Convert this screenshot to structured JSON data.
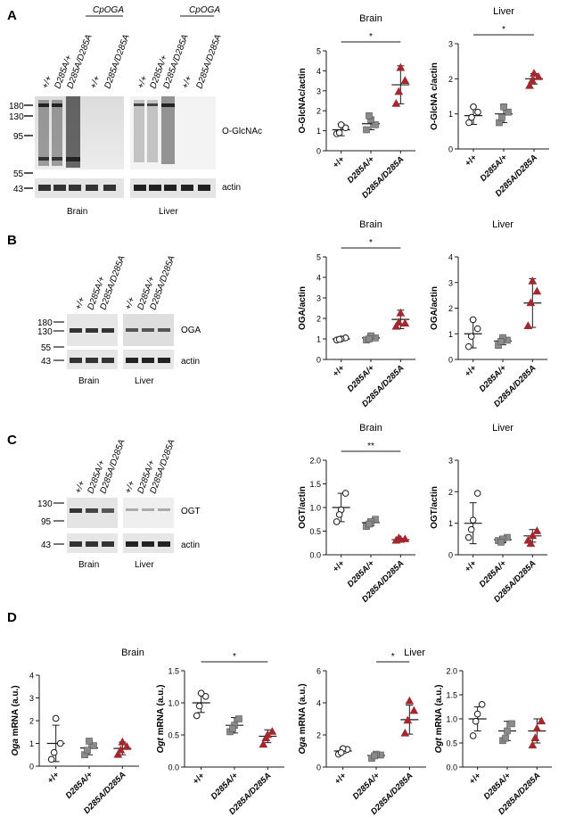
{
  "colors": {
    "wt": "#ffffff",
    "het": "#8a8a8a",
    "hom": "#a3282e",
    "line": "#1a1a1a",
    "blot_bg": "#e6e6e6"
  },
  "genotype_labels": [
    "+/+",
    "D285A/+",
    "D285A/D285A"
  ],
  "blots": {
    "A": {
      "letter": "A",
      "header_brain": [
        "+/+",
        "D285A/+",
        "D285A/D285A",
        "+/+",
        "D285A/D285A"
      ],
      "header_liver": [
        "+/+",
        "D285A/+",
        "D285A/D285A",
        "+/+",
        "D285A/D285A"
      ],
      "cpoga_label": "CpOGA",
      "markers": [
        "180",
        "130",
        "95",
        "55",
        "43"
      ],
      "band_labels": [
        "O-GlcNAc",
        "actin"
      ],
      "tissues": [
        "Brain",
        "Liver"
      ]
    },
    "B": {
      "letter": "B",
      "header": [
        "+/+",
        "D285A/+",
        "D285A/D285A"
      ],
      "markers": [
        "180",
        "130",
        "55",
        "43"
      ],
      "band_labels": [
        "OGA",
        "actin"
      ],
      "tissues": [
        "Brain",
        "Liver"
      ]
    },
    "C": {
      "letter": "C",
      "header": [
        "+/+",
        "D285A/+",
        "D285A/D285A"
      ],
      "markers": [
        "130",
        "95",
        "43"
      ],
      "band_labels": [
        "OGT",
        "actin"
      ],
      "tissues": [
        "Brain",
        "Liver"
      ]
    },
    "D": {
      "letter": "D",
      "group_titles": [
        "Brain",
        "Liver"
      ]
    }
  },
  "chart_data": [
    {
      "id": "A-brain",
      "type": "scatter",
      "title": "Brain",
      "ylabel": "O-GlcNAc/actin",
      "ylim": [
        0,
        5
      ],
      "yticks": [
        0,
        1,
        2,
        3,
        4,
        5
      ],
      "categories": [
        "+/+",
        "D285A/+",
        "D285A/D285A"
      ],
      "points": [
        [
          0.85,
          1.15,
          1.3,
          0.9
        ],
        [
          1.05,
          1.3,
          1.55,
          1.75
        ],
        [
          2.35,
          3.5,
          4.15,
          2.95
        ]
      ],
      "mean": [
        1.05,
        1.35,
        3.3
      ],
      "sd": [
        0.3,
        0.3,
        0.95
      ],
      "significance": [
        {
          "from": 0,
          "to": 2,
          "label": "*"
        }
      ]
    },
    {
      "id": "A-liver",
      "type": "scatter",
      "title": "Liver",
      "ylabel": "O-GlcNA c/actin",
      "ylim": [
        0,
        3
      ],
      "yticks": [
        0,
        1,
        2,
        3
      ],
      "categories": [
        "+/+",
        "D285A/+",
        "D285A/D285A"
      ],
      "points": [
        [
          0.75,
          1.05,
          1.2,
          0.9
        ],
        [
          0.75,
          1.05,
          1.2,
          0.9
        ],
        [
          1.8,
          2.05,
          2.15,
          1.95
        ]
      ],
      "mean": [
        0.95,
        1.0,
        2.0
      ],
      "sd": [
        0.25,
        0.25,
        0.15
      ],
      "significance": [
        {
          "from": 0,
          "to": 2,
          "label": "*"
        }
      ]
    },
    {
      "id": "B-brain",
      "type": "scatter",
      "title": "Brain",
      "ylabel": "OGA/actin",
      "ylim": [
        0,
        5
      ],
      "yticks": [
        0,
        1,
        2,
        3,
        4,
        5
      ],
      "categories": [
        "+/+",
        "D285A/+",
        "D285A/D285A"
      ],
      "points": [
        [
          0.95,
          1.05,
          1.0,
          0.98
        ],
        [
          0.95,
          1.05,
          1.15,
          1.0
        ],
        [
          1.6,
          1.75,
          2.25,
          1.8
        ]
      ],
      "mean": [
        1.0,
        1.05,
        1.95
      ],
      "sd": [
        0.08,
        0.12,
        0.45
      ],
      "significance": [
        {
          "from": 0,
          "to": 2,
          "label": "*"
        }
      ]
    },
    {
      "id": "B-liver",
      "type": "scatter",
      "title": "Liver",
      "ylabel": "OGA/actin",
      "ylim": [
        0,
        4
      ],
      "yticks": [
        0,
        1,
        2,
        3,
        4
      ],
      "categories": [
        "+/+",
        "D285A/+",
        "D285A/D285A"
      ],
      "points": [
        [
          0.5,
          1.2,
          1.55,
          0.9
        ],
        [
          0.55,
          0.75,
          0.85,
          0.7
        ],
        [
          1.3,
          2.65,
          3.05,
          2.2
        ]
      ],
      "mean": [
        1.0,
        0.72,
        2.2
      ],
      "sd": [
        0.55,
        0.15,
        0.95
      ],
      "significance": []
    },
    {
      "id": "C-brain",
      "type": "scatter",
      "title": "Brain",
      "ylabel": "OGT/actin",
      "ylim": [
        0,
        2.0
      ],
      "yticks": [
        0.0,
        0.5,
        1.0,
        1.5,
        2.0
      ],
      "categories": [
        "+/+",
        "D285A/+",
        "D285A/D285A"
      ],
      "points": [
        [
          0.7,
          1.3,
          0.95,
          0.85
        ],
        [
          0.6,
          0.75,
          0.7,
          0.65
        ],
        [
          0.3,
          0.33,
          0.32,
          0.35
        ]
      ],
      "mean": [
        1.0,
        0.68,
        0.32
      ],
      "sd": [
        0.3,
        0.07,
        0.03
      ],
      "significance": [
        {
          "from": 0,
          "to": 2,
          "label": "**"
        }
      ]
    },
    {
      "id": "C-liver",
      "type": "scatter",
      "title": "Liver",
      "ylabel": "OGT/actin",
      "ylim": [
        0,
        3
      ],
      "yticks": [
        0,
        1,
        2,
        3
      ],
      "categories": [
        "+/+",
        "D285A/+",
        "D285A/D285A"
      ],
      "points": [
        [
          0.55,
          1.95,
          1.1,
          0.8
        ],
        [
          0.45,
          0.55,
          0.5,
          0.4
        ],
        [
          0.45,
          0.75,
          0.6,
          0.35
        ]
      ],
      "mean": [
        1.0,
        0.48,
        0.6
      ],
      "sd": [
        0.65,
        0.1,
        0.2
      ],
      "significance": []
    },
    {
      "id": "D-brain-oga",
      "type": "scatter",
      "ylabel": "Oga mRNA (a.u.)",
      "ylabel_italic": "Oga",
      "ylabel_rest": " mRNA (a.u.)",
      "ylim": [
        0,
        4
      ],
      "yticks": [
        0,
        1,
        2,
        3,
        4
      ],
      "categories": [
        "+/+",
        "D285A/+",
        "D285A/D285A"
      ],
      "points": [
        [
          0.3,
          1.0,
          2.1,
          0.6
        ],
        [
          0.5,
          0.9,
          1.1,
          0.7
        ],
        [
          0.5,
          0.85,
          1.05,
          0.7
        ]
      ],
      "mean": [
        1.0,
        0.8,
        0.78
      ],
      "sd": [
        0.8,
        0.3,
        0.28
      ],
      "significance": []
    },
    {
      "id": "D-brain-ogt",
      "type": "scatter",
      "ylabel": "Ogt mRNA (a.u.)",
      "ylabel_italic": "Ogt",
      "ylabel_rest": " mRNA (a.u.)",
      "ylim": [
        0,
        1.5
      ],
      "yticks": [
        0.0,
        0.5,
        1.0,
        1.5
      ],
      "categories": [
        "+/+",
        "D285A/+",
        "D285A/D285A"
      ],
      "points": [
        [
          0.8,
          1.1,
          1.15,
          0.95
        ],
        [
          0.55,
          0.75,
          0.65,
          0.6
        ],
        [
          0.35,
          0.55,
          0.5,
          0.45
        ]
      ],
      "mean": [
        1.0,
        0.65,
        0.48
      ],
      "sd": [
        0.15,
        0.12,
        0.1
      ],
      "significance": [
        {
          "from": 0,
          "to": 2,
          "label": "*"
        }
      ]
    },
    {
      "id": "D-liver-oga",
      "type": "scatter",
      "ylabel": "Oga mRNA (a.u.)",
      "ylabel_italic": "Oga",
      "ylabel_rest": " mRNA (a.u.)",
      "ylim": [
        0,
        6
      ],
      "yticks": [
        0,
        2,
        4,
        6
      ],
      "categories": [
        "+/+",
        "D285A/+",
        "D285A/D285A"
      ],
      "points": [
        [
          0.8,
          1.1,
          1.15,
          0.9
        ],
        [
          0.55,
          0.75,
          0.8,
          0.7
        ],
        [
          2.1,
          3.5,
          4.1,
          2.9
        ]
      ],
      "mean": [
        1.0,
        0.72,
        2.95
      ],
      "sd": [
        0.15,
        0.12,
        0.9
      ],
      "significance": [
        {
          "from": 1,
          "to": 2,
          "label": "*"
        }
      ]
    },
    {
      "id": "D-liver-ogt",
      "type": "scatter",
      "ylabel": "Ogt mRNA (a.u.)",
      "ylabel_italic": "Ogt",
      "ylabel_rest": " mRNA (a.u.)",
      "ylim": [
        0,
        2.0
      ],
      "yticks": [
        0.0,
        0.5,
        1.0,
        1.5,
        2.0
      ],
      "categories": [
        "+/+",
        "D285A/+",
        "D285A/D285A"
      ],
      "points": [
        [
          0.65,
          1.3,
          1.1,
          0.95
        ],
        [
          0.55,
          0.9,
          0.75,
          0.6
        ],
        [
          0.45,
          0.95,
          0.8,
          0.6
        ]
      ],
      "mean": [
        1.0,
        0.75,
        0.75
      ],
      "sd": [
        0.25,
        0.2,
        0.25
      ],
      "significance": []
    }
  ]
}
